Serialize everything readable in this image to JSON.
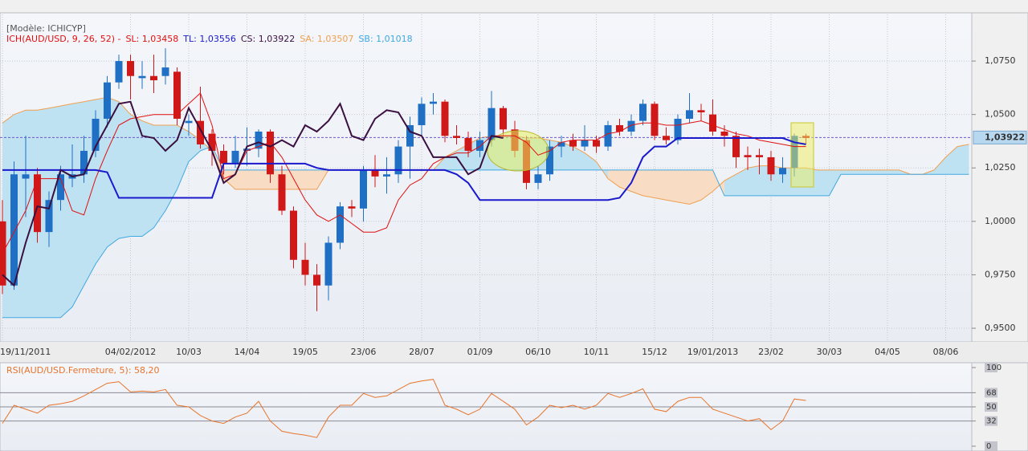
{
  "chart_data": [
    {
      "type": "candlestick",
      "model": "[Modèle: ICHICYP]",
      "indicator": "ICH(AUD/USD, 9, 26, 52) -",
      "indicator_color": "#e01010",
      "up_color": "#1f6fc5",
      "down_color": "#d01818",
      "cloud_colors": {
        "up": "#bfe2f2",
        "down": "#f8dcc4"
      },
      "categories": [
        "19/11/2011",
        null,
        null,
        null,
        null,
        null,
        null,
        null,
        null,
        null,
        null,
        "04/02/2012",
        null,
        null,
        null,
        null,
        "10/03",
        null,
        null,
        null,
        null,
        "14/04",
        null,
        null,
        null,
        null,
        "19/05",
        null,
        null,
        null,
        null,
        "23/06",
        null,
        null,
        null,
        null,
        "28/07",
        null,
        null,
        null,
        null,
        "01/09",
        null,
        null,
        null,
        null,
        "06/10",
        null,
        null,
        null,
        null,
        "10/11",
        null,
        null,
        null,
        null,
        "15/12",
        null,
        null,
        null,
        null,
        "19/01/2013",
        null,
        null,
        null,
        null,
        "23/02",
        null,
        null,
        null,
        null,
        "30/03",
        null,
        null,
        null,
        null,
        "04/05",
        null,
        null,
        null,
        null,
        "08/06",
        null,
        null
      ],
      "open": [
        1.0,
        0.97,
        1.02,
        1.022,
        0.995,
        1.01,
        1.02,
        1.022,
        1.033,
        1.048,
        1.065,
        1.075,
        1.067,
        1.068,
        1.068,
        1.07,
        1.046,
        1.047,
        1.041,
        1.033,
        1.027,
        1.033,
        1.034,
        1.042,
        1.022,
        1.005,
        0.982,
        0.975,
        0.97,
        0.99,
        1.007,
        1.006,
        1.024,
        1.021,
        1.022,
        1.035,
        1.045,
        1.055,
        1.056,
        1.04,
        1.039,
        1.033,
        1.038,
        1.053,
        1.043,
        1.038,
        1.018,
        1.022,
        1.035,
        1.038,
        1.035,
        1.038,
        1.035,
        1.045,
        1.042,
        1.047,
        1.055,
        1.04,
        1.038,
        1.048,
        1.052,
        1.05,
        1.042,
        1.04,
        1.031,
        1.031,
        1.03,
        1.022,
        1.025,
        1.04,
        null,
        null,
        null,
        null,
        null,
        null,
        null,
        null,
        null,
        null,
        null,
        null,
        null,
        null
      ],
      "high": [
        1.01,
        1.028,
        1.04,
        1.025,
        1.014,
        1.026,
        1.036,
        1.04,
        1.052,
        1.068,
        1.078,
        1.078,
        1.075,
        1.078,
        1.081,
        1.072,
        1.05,
        1.063,
        1.043,
        1.036,
        1.04,
        1.044,
        1.043,
        1.043,
        1.026,
        1.007,
        0.99,
        0.98,
        0.993,
        1.009,
        1.01,
        1.026,
        1.031,
        1.03,
        1.038,
        1.049,
        1.058,
        1.06,
        1.057,
        1.045,
        1.042,
        1.042,
        1.061,
        1.054,
        1.047,
        1.04,
        1.026,
        1.038,
        1.04,
        1.041,
        1.045,
        1.04,
        1.047,
        1.048,
        1.05,
        1.057,
        1.056,
        1.044,
        1.05,
        1.06,
        1.055,
        1.057,
        1.045,
        1.042,
        1.035,
        1.034,
        1.033,
        1.03,
        1.041,
        1.041,
        null,
        null,
        null,
        null,
        null,
        null,
        null,
        null,
        null,
        null,
        null,
        null,
        null,
        null
      ],
      "low": [
        0.966,
        0.968,
        1.002,
        0.99,
        0.988,
        1.005,
        1.016,
        1.018,
        1.03,
        1.044,
        1.062,
        1.057,
        1.062,
        1.06,
        1.064,
        1.045,
        1.04,
        1.034,
        1.026,
        1.022,
        1.025,
        1.026,
        1.03,
        1.018,
        1.003,
        0.978,
        0.97,
        0.958,
        0.963,
        0.987,
        1.002,
        1.0,
        1.016,
        1.013,
        1.018,
        1.02,
        1.04,
        1.05,
        1.037,
        1.036,
        1.03,
        1.03,
        1.035,
        1.039,
        1.03,
        1.015,
        1.015,
        1.019,
        1.03,
        1.033,
        1.033,
        1.032,
        1.033,
        1.04,
        1.04,
        1.045,
        1.038,
        1.036,
        1.036,
        1.046,
        1.047,
        1.04,
        1.035,
        1.025,
        1.024,
        1.022,
        1.019,
        1.018,
        1.021,
        1.036,
        null,
        null,
        null,
        null,
        null,
        null,
        null,
        null,
        null,
        null,
        null,
        null,
        null,
        null
      ],
      "close": [
        0.97,
        1.022,
        1.022,
        0.995,
        1.01,
        1.022,
        1.022,
        1.033,
        1.048,
        1.065,
        1.075,
        1.068,
        1.068,
        1.066,
        1.072,
        1.048,
        1.047,
        1.036,
        1.033,
        1.027,
        1.033,
        1.034,
        1.042,
        1.022,
        1.005,
        0.982,
        0.975,
        0.97,
        0.99,
        1.007,
        1.006,
        1.024,
        1.021,
        1.022,
        1.035,
        1.045,
        1.055,
        1.056,
        1.04,
        1.039,
        1.033,
        1.038,
        1.053,
        1.043,
        1.033,
        1.018,
        1.022,
        1.035,
        1.037,
        1.035,
        1.038,
        1.035,
        1.045,
        1.042,
        1.047,
        1.055,
        1.04,
        1.038,
        1.048,
        1.052,
        1.051,
        1.042,
        1.04,
        1.03,
        1.03,
        1.03,
        1.022,
        1.025,
        1.04,
        1.039,
        null,
        null,
        null,
        null,
        null,
        null,
        null,
        null,
        null,
        null,
        null,
        null,
        null,
        null
      ],
      "series": [
        {
          "name": "SL: 1,03458",
          "color": "#e01010",
          "width": 1,
          "values": [
            0.985,
            0.995,
            1.005,
            1.02,
            1.02,
            1.02,
            1.005,
            1.003,
            1.02,
            1.033,
            1.045,
            1.048,
            1.049,
            1.05,
            1.05,
            1.05,
            1.055,
            1.06,
            1.045,
            1.02,
            1.022,
            1.033,
            1.035,
            1.037,
            1.03,
            1.02,
            1.01,
            1.003,
            1.0,
            1.003,
            0.999,
            0.995,
            0.995,
            0.997,
            1.01,
            1.017,
            1.02,
            1.027,
            1.03,
            1.032,
            1.032,
            1.035,
            1.04,
            1.04,
            1.04,
            1.037,
            1.031,
            1.033,
            1.037,
            1.038,
            1.038,
            1.038,
            1.041,
            1.042,
            1.045,
            1.046,
            1.046,
            1.045,
            1.045,
            1.046,
            1.047,
            1.045,
            1.043,
            1.041,
            1.04,
            1.038,
            1.037,
            1.036,
            1.035,
            1.035,
            null,
            null,
            null,
            null,
            null,
            null,
            null,
            null,
            null,
            null,
            null,
            null,
            null,
            null
          ]
        },
        {
          "name": "TL: 1,03556",
          "color": "#1a1acc",
          "width": 2,
          "values": [
            1.024,
            1.024,
            1.024,
            1.024,
            1.024,
            1.024,
            1.024,
            1.024,
            1.024,
            1.023,
            1.011,
            1.011,
            1.011,
            1.011,
            1.011,
            1.011,
            1.011,
            1.011,
            1.011,
            1.027,
            1.027,
            1.027,
            1.027,
            1.027,
            1.027,
            1.027,
            1.027,
            1.025,
            1.024,
            1.024,
            1.024,
            1.024,
            1.024,
            1.024,
            1.024,
            1.024,
            1.024,
            1.024,
            1.024,
            1.022,
            1.018,
            1.01,
            1.01,
            1.01,
            1.01,
            1.01,
            1.01,
            1.01,
            1.01,
            1.01,
            1.01,
            1.01,
            1.01,
            1.011,
            1.018,
            1.03,
            1.035,
            1.035,
            1.039,
            1.039,
            1.039,
            1.039,
            1.039,
            1.039,
            1.039,
            1.039,
            1.039,
            1.039,
            1.037,
            1.036,
            null,
            null,
            null,
            null,
            null,
            null,
            null,
            null,
            null,
            null,
            null,
            null,
            null,
            null
          ]
        },
        {
          "name": "CS: 1,03922",
          "color": "#3a1040",
          "width": 2,
          "values": [
            0.975,
            0.97,
            0.99,
            1.007,
            1.006,
            1.024,
            1.021,
            1.022,
            1.035,
            1.045,
            1.055,
            1.056,
            1.04,
            1.039,
            1.033,
            1.038,
            1.053,
            1.043,
            1.033,
            1.018,
            1.022,
            1.035,
            1.037,
            1.035,
            1.038,
            1.035,
            1.045,
            1.042,
            1.047,
            1.055,
            1.04,
            1.038,
            1.048,
            1.052,
            1.051,
            1.042,
            1.04,
            1.03,
            1.03,
            1.03,
            1.022,
            1.025,
            1.04,
            1.039,
            null,
            null,
            null,
            null,
            null,
            null,
            null,
            null,
            null,
            null,
            null,
            null,
            null,
            null,
            null,
            null,
            null,
            null,
            null,
            null,
            null,
            null,
            null,
            null,
            null,
            null,
            null,
            null,
            null,
            null,
            null,
            null,
            null,
            null,
            null,
            null,
            null,
            null,
            null,
            null
          ]
        },
        {
          "name": "SA: 1,03507",
          "color": "#f0a050",
          "width": 1,
          "values": [
            1.046,
            1.05,
            1.052,
            1.052,
            1.053,
            1.054,
            1.055,
            1.056,
            1.057,
            1.058,
            1.056,
            1.05,
            1.047,
            1.045,
            1.045,
            1.045,
            1.042,
            1.038,
            1.033,
            1.02,
            1.015,
            1.015,
            1.015,
            1.015,
            1.015,
            1.015,
            1.015,
            1.015,
            1.024,
            1.024,
            1.024,
            1.024,
            1.024,
            1.024,
            1.024,
            1.024,
            1.024,
            1.024,
            1.03,
            1.033,
            1.036,
            1.039,
            1.04,
            1.04,
            1.04,
            1.039,
            1.039,
            1.038,
            1.037,
            1.035,
            1.032,
            1.028,
            1.02,
            1.016,
            1.014,
            1.012,
            1.011,
            1.01,
            1.009,
            1.008,
            1.01,
            1.014,
            1.019,
            1.022,
            1.025,
            1.026,
            1.026,
            1.025,
            1.025,
            1.025,
            1.024,
            1.024,
            1.024,
            1.024,
            1.024,
            1.024,
            1.024,
            1.024,
            1.022,
            1.022,
            1.024,
            1.03,
            1.035,
            1.036
          ]
        },
        {
          "name": "SB: 1,01018",
          "color": "#40a8e0",
          "width": 1,
          "values": [
            0.955,
            0.955,
            0.955,
            0.955,
            0.955,
            0.955,
            0.96,
            0.97,
            0.98,
            0.988,
            0.992,
            0.993,
            0.993,
            0.997,
            1.005,
            1.015,
            1.028,
            1.033,
            1.035,
            1.024,
            1.024,
            1.024,
            1.024,
            1.024,
            1.024,
            1.024,
            1.024,
            1.024,
            1.024,
            1.024,
            1.024,
            1.024,
            1.024,
            1.024,
            1.024,
            1.024,
            1.024,
            1.024,
            1.024,
            1.024,
            1.024,
            1.024,
            1.024,
            1.024,
            1.024,
            1.024,
            1.024,
            1.024,
            1.024,
            1.024,
            1.024,
            1.024,
            1.024,
            1.024,
            1.024,
            1.024,
            1.024,
            1.024,
            1.024,
            1.024,
            1.024,
            1.024,
            1.012,
            1.012,
            1.012,
            1.012,
            1.012,
            1.012,
            1.012,
            1.012,
            1.012,
            1.012,
            1.022,
            1.022,
            1.022,
            1.022,
            1.022,
            1.022,
            1.022,
            1.022,
            1.022,
            1.022,
            1.022,
            1.022
          ]
        }
      ],
      "price_line": {
        "value": 1.03922,
        "label": "1,03922",
        "color": "#6a5acd"
      },
      "ylim": [
        0.944,
        1.0968
      ],
      "yticks": [
        {
          "value": 0.95,
          "label": "0,9500"
        },
        {
          "value": 0.975,
          "label": "0,9750"
        },
        {
          "value": 1.0,
          "label": "1,0000"
        },
        {
          "value": 1.025,
          "label": "1,0250"
        },
        {
          "value": 1.05,
          "label": "1,0500"
        },
        {
          "value": 1.075,
          "label": "1,0750"
        }
      ],
      "grid": true
    },
    {
      "type": "line",
      "title": "RSI(AUD/USD.Fermeture, 5): 58,20",
      "color": "#e8742c",
      "values": [
        29,
        52,
        47,
        42,
        52,
        54,
        57,
        64,
        72,
        80,
        82,
        69,
        70,
        69,
        72,
        52,
        50,
        39,
        32,
        29,
        37,
        42,
        57,
        32,
        19,
        16,
        14,
        11,
        37,
        52,
        52,
        67,
        62,
        64,
        72,
        80,
        83,
        85,
        52,
        47,
        40,
        47,
        67,
        57,
        47,
        27,
        37,
        52,
        49,
        52,
        47,
        52,
        67,
        62,
        67,
        73,
        47,
        44,
        57,
        62,
        62,
        47,
        42,
        37,
        32,
        35,
        21,
        32,
        60,
        58.2,
        null,
        null,
        null,
        null,
        null,
        null,
        null,
        null,
        null,
        null,
        null,
        null,
        null,
        null
      ],
      "ylim": [
        0,
        100
      ],
      "yticks": [
        100,
        68,
        50,
        32,
        0
      ]
    }
  ]
}
